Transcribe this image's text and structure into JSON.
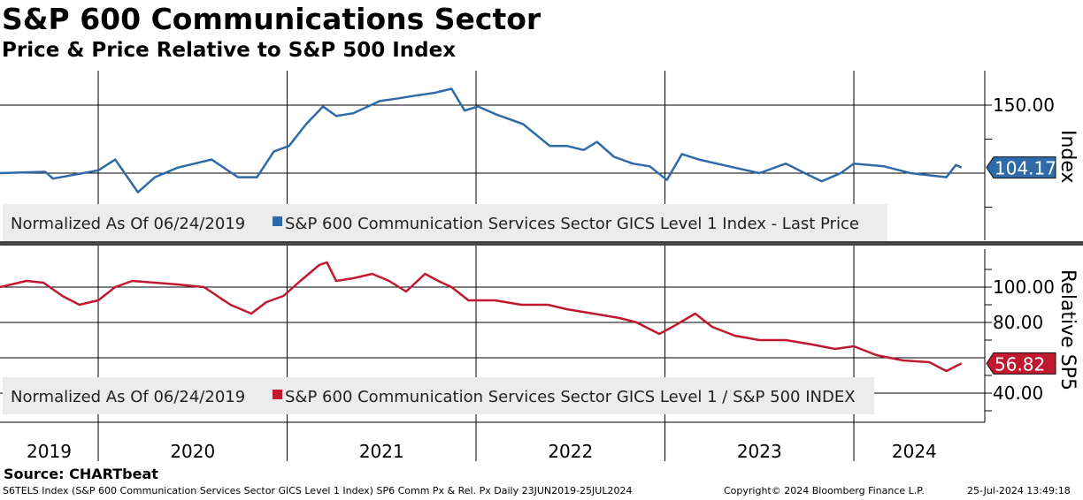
{
  "title": "S&P 600 Communications Sector",
  "subtitle": "Price & Price Relative to S&P 500 Index",
  "source": "Source: CHARTbeat",
  "footer": {
    "description": "S6TELS Index (S&P 600 Communication Services Sector GICS Level 1 Index) SP6 Comm Px & Rel. Px  Daily 23JUN2019-25JUL2024",
    "copyright": "Copyright© 2024 Bloomberg Finance L.P.",
    "timestamp": "25-Jul-2024 13:49:18"
  },
  "colors": {
    "price": "#2e6aa8",
    "relative": "#c0182f",
    "legend_bg": "#ececec"
  },
  "chart_data": [
    {
      "type": "line",
      "panel": "upper",
      "ylabel": "Index",
      "yticks": [
        "150.00"
      ],
      "ytick_values": [
        150
      ],
      "ylim": [
        65,
        175
      ],
      "last_value_label": "104.17",
      "legend_prefix": "Normalized As Of 06/24/2019",
      "series": [
        {
          "name": "S&P 600 Communication Services Sector GICS Level 1 Index - Last Price",
          "x": [
            2019.48,
            2019.72,
            2019.76,
            2020.0,
            2020.09,
            2020.21,
            2020.3,
            2020.42,
            2020.6,
            2020.74,
            2020.84,
            2020.93,
            2021.01,
            2021.1,
            2021.19,
            2021.26,
            2021.35,
            2021.49,
            2021.59,
            2021.68,
            2021.78,
            2021.87,
            2021.94,
            2022.01,
            2022.11,
            2022.25,
            2022.39,
            2022.48,
            2022.57,
            2022.64,
            2022.73,
            2022.83,
            2022.92,
            2023.01,
            2023.09,
            2023.18,
            2023.37,
            2023.5,
            2023.64,
            2023.74,
            2023.83,
            2023.93,
            2024.0,
            2024.16,
            2024.3,
            2024.49,
            2024.54,
            2024.57
          ],
          "values": [
            100,
            101,
            96,
            102,
            110,
            86,
            97,
            104,
            110,
            97,
            97,
            116,
            120,
            136,
            149,
            142,
            144,
            153,
            155,
            157,
            159,
            162,
            146,
            149,
            143,
            136,
            120,
            120,
            117,
            123,
            112,
            107,
            105,
            95,
            114,
            110,
            104,
            100,
            107,
            100,
            94,
            100,
            107,
            105,
            100,
            97,
            106,
            104.17
          ]
        }
      ]
    },
    {
      "type": "line",
      "panel": "lower",
      "ylabel": "Relative SP5",
      "yticks": [
        "100.00",
        "80.00",
        "40.00"
      ],
      "ytick_values": [
        100,
        80,
        40
      ],
      "ylim": [
        32,
        120
      ],
      "last_value_label": "56.82",
      "legend_prefix": "Normalized As Of 06/24/2019",
      "series": [
        {
          "name": "S&P 600 Communication Services Sector GICS Level 1 / S&P 500 INDEX",
          "x": [
            2019.48,
            2019.62,
            2019.71,
            2019.81,
            2019.9,
            2020.0,
            2020.09,
            2020.18,
            2020.3,
            2020.42,
            2020.56,
            2020.7,
            2020.81,
            2020.89,
            2020.98,
            2021.07,
            2021.17,
            2021.21,
            2021.26,
            2021.35,
            2021.45,
            2021.54,
            2021.63,
            2021.73,
            2021.8,
            2021.87,
            2021.96,
            2022.1,
            2022.24,
            2022.38,
            2022.48,
            2022.62,
            2022.76,
            2022.85,
            2022.97,
            2023.04,
            2023.16,
            2023.25,
            2023.37,
            2023.5,
            2023.64,
            2023.78,
            2023.9,
            2024.0,
            2024.12,
            2024.26,
            2024.4,
            2024.49,
            2024.57
          ],
          "values": [
            100,
            103.5,
            102.5,
            95,
            90,
            92.5,
            100,
            103.5,
            102.5,
            101.5,
            100,
            90,
            85,
            91.5,
            95,
            103.5,
            112.5,
            114,
            103.5,
            105,
            107.5,
            103.5,
            97.5,
            107.5,
            103.5,
            100,
            92.5,
            92.5,
            90,
            90,
            87.5,
            85,
            82.5,
            80,
            73.5,
            77.5,
            85,
            77.5,
            72.5,
            70,
            70,
            67.5,
            65,
            66.5,
            61.5,
            58.5,
            57.5,
            52.5,
            56.82
          ]
        }
      ]
    }
  ],
  "x_axis": {
    "labels": [
      "2019",
      "2020",
      "2021",
      "2022",
      "2023",
      "2024"
    ],
    "year_starts": [
      2020,
      2021,
      2022,
      2023,
      2024
    ]
  }
}
